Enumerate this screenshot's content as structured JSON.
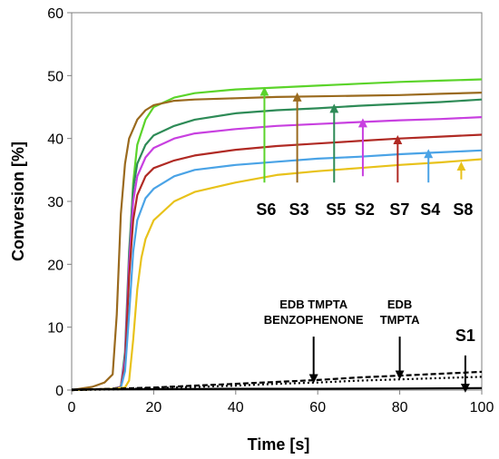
{
  "chart_data": {
    "type": "line",
    "title": "",
    "xlabel": "Time [s]",
    "ylabel": "Conversion [%]",
    "xlim": [
      0,
      100
    ],
    "ylim": [
      0,
      60
    ],
    "xticks": [
      0,
      20,
      40,
      60,
      80,
      100
    ],
    "yticks": [
      0,
      10,
      20,
      30,
      40,
      50,
      60
    ],
    "grid": false,
    "series": [
      {
        "name": "S6",
        "color": "#5bd42a",
        "x": [
          0,
          10,
          12,
          13,
          14,
          15,
          16,
          18,
          20,
          25,
          30,
          40,
          50,
          60,
          70,
          80,
          90,
          100
        ],
        "y": [
          0,
          0.2,
          0.5,
          5,
          20,
          33,
          39,
          43,
          45,
          46.5,
          47.2,
          47.8,
          48.1,
          48.4,
          48.7,
          49,
          49.2,
          49.4
        ]
      },
      {
        "name": "S3",
        "color": "#9a6a1e",
        "x": [
          0,
          5,
          8,
          10,
          11,
          12,
          13,
          14,
          16,
          18,
          20,
          25,
          30,
          40,
          50,
          60,
          70,
          80,
          90,
          100
        ],
        "y": [
          0,
          0.5,
          1.2,
          2.5,
          12,
          28,
          36,
          40,
          43,
          44.5,
          45.3,
          46,
          46.2,
          46.4,
          46.6,
          46.7,
          46.8,
          46.9,
          47.1,
          47.3
        ]
      },
      {
        "name": "S5",
        "color": "#2e8b57",
        "x": [
          0,
          10,
          12,
          13,
          14,
          15,
          16,
          18,
          20,
          25,
          30,
          40,
          50,
          60,
          70,
          80,
          90,
          100
        ],
        "y": [
          0,
          0.2,
          0.5,
          6,
          22,
          32,
          36,
          39,
          40.5,
          42,
          43,
          44,
          44.5,
          44.8,
          45.2,
          45.5,
          45.8,
          46.2
        ]
      },
      {
        "name": "S2",
        "color": "#c840e0",
        "x": [
          0,
          10,
          12,
          13,
          14,
          15,
          16,
          18,
          20,
          25,
          30,
          40,
          50,
          60,
          70,
          80,
          90,
          100
        ],
        "y": [
          0,
          0.2,
          0.5,
          5,
          20,
          30,
          34,
          37,
          38.5,
          40,
          40.8,
          41.5,
          42,
          42.3,
          42.6,
          42.9,
          43.1,
          43.4
        ]
      },
      {
        "name": "S7",
        "color": "#b02a24",
        "x": [
          0,
          10,
          12,
          13,
          14,
          15,
          16,
          18,
          20,
          25,
          30,
          40,
          50,
          60,
          70,
          80,
          90,
          100
        ],
        "y": [
          0,
          0.2,
          0.5,
          4,
          18,
          27,
          31,
          34,
          35.3,
          36.5,
          37.3,
          38.2,
          38.8,
          39.2,
          39.6,
          40,
          40.3,
          40.6
        ]
      },
      {
        "name": "S4",
        "color": "#4aa3e6",
        "x": [
          0,
          10,
          12,
          13,
          14,
          15,
          16,
          18,
          20,
          25,
          30,
          40,
          50,
          60,
          70,
          80,
          90,
          100
        ],
        "y": [
          0,
          0.2,
          0.4,
          3,
          12,
          22,
          27,
          30.5,
          32,
          34,
          35,
          35.8,
          36.3,
          36.8,
          37.1,
          37.5,
          37.8,
          38.1
        ]
      },
      {
        "name": "S8",
        "color": "#e8c21a",
        "x": [
          0,
          10,
          13,
          14,
          15,
          16,
          17,
          18,
          20,
          25,
          30,
          40,
          50,
          60,
          70,
          80,
          90,
          100
        ],
        "y": [
          0,
          0.2,
          0.4,
          1.5,
          8,
          16,
          21,
          24,
          27,
          30,
          31.5,
          33,
          34.2,
          34.8,
          35.3,
          35.8,
          36.2,
          36.7
        ]
      },
      {
        "name": "S1",
        "color": "#000000",
        "dash": "",
        "x": [
          0,
          20,
          40,
          60,
          80,
          100
        ],
        "y": [
          0.1,
          0.15,
          0.2,
          0.2,
          0.25,
          0.3
        ]
      },
      {
        "name": "EDB TMPTA BENZOPHENONE",
        "color": "#000000",
        "dash": "6,3",
        "x": [
          0,
          10,
          20,
          30,
          40,
          50,
          60,
          70,
          80,
          90,
          100
        ],
        "y": [
          0,
          0.2,
          0.4,
          0.7,
          1.0,
          1.3,
          1.6,
          2.0,
          2.3,
          2.6,
          2.9
        ]
      },
      {
        "name": "EDB TMPTA",
        "color": "#000000",
        "dash": "2,3",
        "x": [
          0,
          10,
          20,
          30,
          40,
          50,
          60,
          70,
          80,
          90,
          100
        ],
        "y": [
          0,
          0.1,
          0.3,
          0.5,
          0.7,
          1.0,
          1.2,
          1.5,
          1.7,
          1.9,
          2.1
        ]
      }
    ],
    "series_labels": [
      {
        "text": "S6",
        "x": 47,
        "label_y": 29,
        "arrow_from": 33,
        "arrow_to": 47.5,
        "color": "#5bd42a"
      },
      {
        "text": "S3",
        "x": 55,
        "label_y": 29,
        "arrow_from": 33,
        "arrow_to": 46.6,
        "color": "#9a6a1e"
      },
      {
        "text": "S5",
        "x": 64,
        "label_y": 29,
        "arrow_from": 33,
        "arrow_to": 44.8,
        "color": "#2e8b57"
      },
      {
        "text": "S2",
        "x": 71,
        "label_y": 29,
        "arrow_from": 34,
        "arrow_to": 42.5,
        "color": "#c840e0"
      },
      {
        "text": "S7",
        "x": 79.5,
        "label_y": 29,
        "arrow_from": 33,
        "arrow_to": 39.8,
        "color": "#b02a24"
      },
      {
        "text": "S4",
        "x": 87,
        "label_y": 29,
        "arrow_from": 33,
        "arrow_to": 37.6,
        "color": "#4aa3e6"
      },
      {
        "text": "S8",
        "x": 95,
        "label_y": 29,
        "arrow_from": 33.5,
        "arrow_to": 35.6,
        "color": "#e8c21a"
      }
    ],
    "annotations": [
      {
        "lines": [
          "EDB TMPTA",
          "BENZOPHENONE"
        ],
        "x": 59,
        "y": 10.5,
        "arrow_from": 8.5,
        "arrow_to": 1.8,
        "size": "small"
      },
      {
        "lines": [
          "EDB",
          "TMPTA"
        ],
        "x": 80,
        "y": 10.5,
        "arrow_from": 8.5,
        "arrow_to": 2.4,
        "size": "small"
      },
      {
        "lines": [
          "S1"
        ],
        "x": 96,
        "y": 7.8,
        "arrow_from": 5.5,
        "arrow_to": 0.3,
        "size": "big"
      }
    ]
  }
}
